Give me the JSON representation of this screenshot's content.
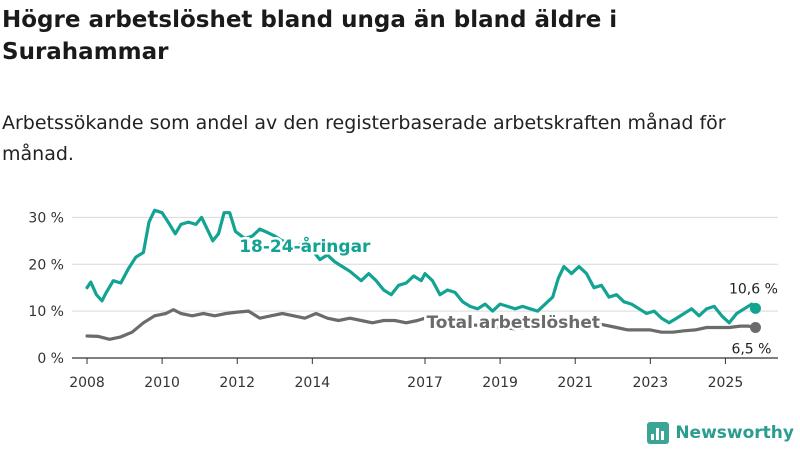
{
  "title": "Högre arbetslöshet bland unga än bland äldre i Surahammar",
  "subtitle": "Arbetssökande som andel av den registerbaserade arbetskraften månad för månad.",
  "brand": "Newsworthy",
  "colors": {
    "youth": "#12a393",
    "total": "#6b6b6b",
    "grid": "#d9d9d9",
    "axis": "#333333"
  },
  "chart_data": {
    "type": "line",
    "title": "Högre arbetslöshet bland unga än bland äldre i Surahammar",
    "xlabel": "",
    "ylabel": "",
    "xlim": [
      2007.6,
      2026.4
    ],
    "ylim": [
      0,
      32
    ],
    "y_ticks": [
      0,
      10,
      20,
      30
    ],
    "y_tick_labels": [
      "0 %",
      "10 %",
      "20 %",
      "30 %"
    ],
    "x_ticks": [
      2008,
      2010,
      2012,
      2014,
      2017,
      2019,
      2021,
      2023,
      2025
    ],
    "x_tick_labels": [
      "2008",
      "2010",
      "2012",
      "2014",
      "2017",
      "2019",
      "2021",
      "2023",
      "2025"
    ],
    "grid": true,
    "series": [
      {
        "name": "18-24-åringar",
        "label": "18-24-åringar",
        "end_label": "10,6 %",
        "points": [
          [
            2008.0,
            15.0
          ],
          [
            2008.1,
            16.2
          ],
          [
            2008.25,
            13.5
          ],
          [
            2008.4,
            12.2
          ],
          [
            2008.5,
            13.8
          ],
          [
            2008.7,
            16.5
          ],
          [
            2008.9,
            16.0
          ],
          [
            2009.1,
            19.0
          ],
          [
            2009.3,
            21.5
          ],
          [
            2009.5,
            22.5
          ],
          [
            2009.65,
            29.0
          ],
          [
            2009.8,
            31.5
          ],
          [
            2010.0,
            31.0
          ],
          [
            2010.2,
            28.5
          ],
          [
            2010.35,
            26.5
          ],
          [
            2010.5,
            28.5
          ],
          [
            2010.7,
            29.0
          ],
          [
            2010.9,
            28.5
          ],
          [
            2011.05,
            30.0
          ],
          [
            2011.2,
            27.5
          ],
          [
            2011.35,
            25.0
          ],
          [
            2011.5,
            26.5
          ],
          [
            2011.65,
            31.0
          ],
          [
            2011.8,
            31.0
          ],
          [
            2011.95,
            27.0
          ],
          [
            2012.2,
            25.5
          ],
          [
            2012.4,
            26.0
          ],
          [
            2012.6,
            27.5
          ],
          [
            2012.8,
            26.8
          ],
          [
            2013.0,
            26.0
          ],
          [
            2013.2,
            25.0
          ],
          [
            2013.4,
            24.5
          ],
          [
            2013.6,
            23.5
          ],
          [
            2013.8,
            25.5
          ],
          [
            2014.0,
            23.0
          ],
          [
            2014.2,
            21.0
          ],
          [
            2014.4,
            22.0
          ],
          [
            2014.6,
            20.5
          ],
          [
            2014.8,
            19.5
          ],
          [
            2015.0,
            18.5
          ],
          [
            2015.3,
            16.5
          ],
          [
            2015.5,
            18.0
          ],
          [
            2015.7,
            16.5
          ],
          [
            2015.9,
            14.5
          ],
          [
            2016.1,
            13.5
          ],
          [
            2016.3,
            15.5
          ],
          [
            2016.5,
            16.0
          ],
          [
            2016.7,
            17.5
          ],
          [
            2016.9,
            16.5
          ],
          [
            2017.0,
            18.0
          ],
          [
            2017.2,
            16.5
          ],
          [
            2017.4,
            13.5
          ],
          [
            2017.6,
            14.5
          ],
          [
            2017.8,
            14.0
          ],
          [
            2018.0,
            12.0
          ],
          [
            2018.2,
            11.0
          ],
          [
            2018.4,
            10.5
          ],
          [
            2018.6,
            11.5
          ],
          [
            2018.8,
            10.0
          ],
          [
            2019.0,
            11.5
          ],
          [
            2019.2,
            11.0
          ],
          [
            2019.4,
            10.5
          ],
          [
            2019.6,
            11.0
          ],
          [
            2019.8,
            10.5
          ],
          [
            2020.0,
            10.0
          ],
          [
            2020.2,
            11.5
          ],
          [
            2020.4,
            13.0
          ],
          [
            2020.55,
            17.0
          ],
          [
            2020.7,
            19.5
          ],
          [
            2020.9,
            18.0
          ],
          [
            2021.1,
            19.5
          ],
          [
            2021.3,
            18.0
          ],
          [
            2021.5,
            15.0
          ],
          [
            2021.7,
            15.5
          ],
          [
            2021.9,
            13.0
          ],
          [
            2022.1,
            13.5
          ],
          [
            2022.3,
            12.0
          ],
          [
            2022.5,
            11.5
          ],
          [
            2022.7,
            10.5
          ],
          [
            2022.9,
            9.5
          ],
          [
            2023.1,
            10.0
          ],
          [
            2023.3,
            8.5
          ],
          [
            2023.5,
            7.5
          ],
          [
            2023.7,
            8.5
          ],
          [
            2023.9,
            9.5
          ],
          [
            2024.1,
            10.5
          ],
          [
            2024.3,
            9.0
          ],
          [
            2024.5,
            10.5
          ],
          [
            2024.7,
            11.0
          ],
          [
            2024.9,
            9.0
          ],
          [
            2025.1,
            7.5
          ],
          [
            2025.3,
            9.5
          ],
          [
            2025.5,
            10.5
          ],
          [
            2025.7,
            11.5
          ],
          [
            2025.8,
            10.6
          ]
        ]
      },
      {
        "name": "Total arbetslöshet",
        "label": "Total arbetslöshet",
        "end_label": "6,5 %",
        "points": [
          [
            2008.0,
            4.7
          ],
          [
            2008.3,
            4.6
          ],
          [
            2008.6,
            4.0
          ],
          [
            2008.9,
            4.5
          ],
          [
            2009.2,
            5.5
          ],
          [
            2009.5,
            7.5
          ],
          [
            2009.8,
            9.0
          ],
          [
            2010.1,
            9.5
          ],
          [
            2010.3,
            10.3
          ],
          [
            2010.5,
            9.5
          ],
          [
            2010.8,
            9.0
          ],
          [
            2011.1,
            9.5
          ],
          [
            2011.4,
            9.0
          ],
          [
            2011.7,
            9.5
          ],
          [
            2012.0,
            9.8
          ],
          [
            2012.3,
            10.0
          ],
          [
            2012.6,
            8.5
          ],
          [
            2012.9,
            9.0
          ],
          [
            2013.2,
            9.5
          ],
          [
            2013.5,
            9.0
          ],
          [
            2013.8,
            8.5
          ],
          [
            2014.1,
            9.5
          ],
          [
            2014.4,
            8.5
          ],
          [
            2014.7,
            8.0
          ],
          [
            2015.0,
            8.5
          ],
          [
            2015.3,
            8.0
          ],
          [
            2015.6,
            7.5
          ],
          [
            2015.9,
            8.0
          ],
          [
            2016.2,
            8.0
          ],
          [
            2016.5,
            7.5
          ],
          [
            2016.8,
            8.0
          ],
          [
            2017.0,
            8.5
          ],
          [
            2017.3,
            8.0
          ],
          [
            2017.6,
            7.5
          ],
          [
            2017.9,
            7.5
          ],
          [
            2018.2,
            7.0
          ],
          [
            2018.5,
            7.0
          ],
          [
            2018.8,
            6.5
          ],
          [
            2019.1,
            6.5
          ],
          [
            2019.4,
            6.2
          ],
          [
            2019.7,
            6.5
          ],
          [
            2020.0,
            6.5
          ],
          [
            2020.3,
            7.5
          ],
          [
            2020.6,
            8.0
          ],
          [
            2020.9,
            8.0
          ],
          [
            2021.2,
            8.0
          ],
          [
            2021.5,
            7.5
          ],
          [
            2021.8,
            7.0
          ],
          [
            2022.1,
            6.5
          ],
          [
            2022.4,
            6.0
          ],
          [
            2022.7,
            6.0
          ],
          [
            2023.0,
            6.0
          ],
          [
            2023.3,
            5.5
          ],
          [
            2023.6,
            5.5
          ],
          [
            2023.9,
            5.8
          ],
          [
            2024.2,
            6.0
          ],
          [
            2024.5,
            6.5
          ],
          [
            2024.8,
            6.5
          ],
          [
            2025.1,
            6.5
          ],
          [
            2025.4,
            6.8
          ],
          [
            2025.6,
            6.8
          ],
          [
            2025.8,
            6.5
          ]
        ]
      }
    ]
  }
}
